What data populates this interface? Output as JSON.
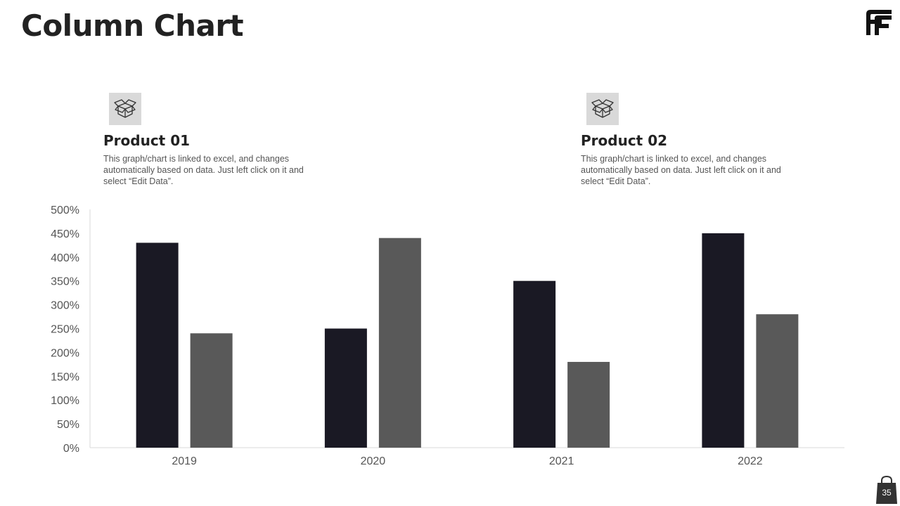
{
  "slide": {
    "title": "Column Chart",
    "page_number": "35"
  },
  "products": [
    {
      "title": "Product 01",
      "description": "This graph/chart is linked to excel, and changes automatically based on data. Just left click on it and select “Edit Data”.",
      "icon": "box-icon"
    },
    {
      "title": "Product 02",
      "description": "This graph/chart is linked to excel, and changes automatically based on data. Just left click on it and select “Edit Data”.",
      "icon": "box-icon"
    }
  ],
  "colors": {
    "series1": "#1a1924",
    "series2": "#595959",
    "axis": "#d9d9d9",
    "tick_text": "#595959"
  },
  "chart_data": {
    "type": "bar",
    "categories": [
      "2019",
      "2020",
      "2021",
      "2022"
    ],
    "series": [
      {
        "values": [
          430,
          250,
          350,
          450
        ]
      },
      {
        "values": [
          240,
          440,
          180,
          280
        ]
      }
    ],
    "y_tick_labels": [
      "0%",
      "50%",
      "100%",
      "150%",
      "200%",
      "250%",
      "300%",
      "350%",
      "400%",
      "450%",
      "500%"
    ],
    "ylim": [
      0,
      500
    ],
    "y_unit": "%",
    "grid": false,
    "legend": "none"
  }
}
